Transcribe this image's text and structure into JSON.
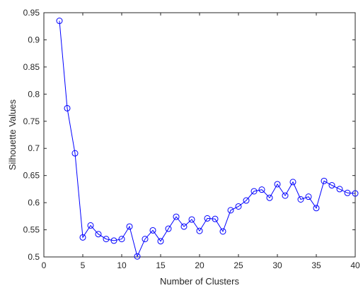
{
  "chart_data": {
    "type": "line",
    "xlabel": "Number of Clusters",
    "ylabel": "Silhouette Values",
    "xlim": [
      0,
      40
    ],
    "ylim": [
      0.5,
      0.95
    ],
    "xticks": [
      "0",
      "5",
      "10",
      "15",
      "20",
      "25",
      "30",
      "35",
      "40"
    ],
    "yticks": [
      "0.5",
      "0.55",
      "0.6",
      "0.65",
      "0.7",
      "0.75",
      "0.8",
      "0.85",
      "0.9",
      "0.95"
    ],
    "grid": false,
    "legend": "none",
    "marker": "circle",
    "line_color": "#0000ff",
    "series": [
      {
        "x": [
          2,
          3,
          4,
          5,
          6,
          7,
          8,
          9,
          10,
          11,
          12,
          13,
          14,
          15,
          16,
          17,
          18,
          19,
          20,
          21,
          22,
          23,
          24,
          25,
          26,
          27,
          28,
          29,
          30,
          31,
          32,
          33,
          34,
          35,
          36,
          37,
          38,
          39,
          40
        ],
        "values": [
          0.935,
          0.774,
          0.691,
          0.536,
          0.558,
          0.542,
          0.533,
          0.53,
          0.533,
          0.556,
          0.501,
          0.533,
          0.549,
          0.529,
          0.552,
          0.574,
          0.556,
          0.569,
          0.548,
          0.571,
          0.57,
          0.547,
          0.586,
          0.593,
          0.604,
          0.621,
          0.624,
          0.609,
          0.634,
          0.613,
          0.638,
          0.606,
          0.611,
          0.59,
          0.64,
          0.632,
          0.625,
          0.618,
          0.617
        ]
      }
    ]
  }
}
